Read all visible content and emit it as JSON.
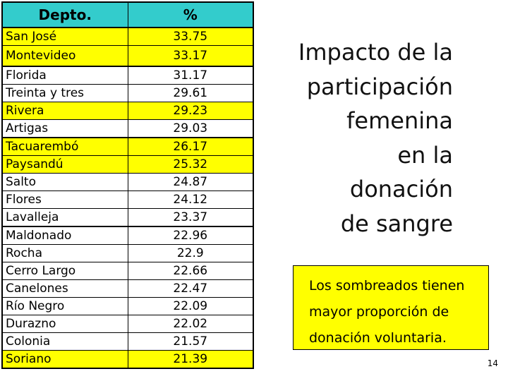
{
  "table": {
    "headers": [
      "Depto.",
      "%"
    ],
    "rows": [
      {
        "depto": "San José",
        "pct": "33.75",
        "highlight": true
      },
      {
        "depto": "Montevideo",
        "pct": "33.17",
        "highlight": true
      },
      {
        "depto": "Florida",
        "pct": "31.17",
        "highlight": false
      },
      {
        "depto": "Treinta y tres",
        "pct": "29.61",
        "highlight": false
      },
      {
        "depto": "Rivera",
        "pct": "29.23",
        "highlight": true
      },
      {
        "depto": "Artigas",
        "pct": "29.03",
        "highlight": false
      },
      {
        "depto": "Tacuarembó",
        "pct": "26.17",
        "highlight": true
      },
      {
        "depto": "Paysandú",
        "pct": "25.32",
        "highlight": true
      },
      {
        "depto": "Salto",
        "pct": "24.87",
        "highlight": false
      },
      {
        "depto": "Flores",
        "pct": "24.12",
        "highlight": false
      },
      {
        "depto": "Lavalleja",
        "pct": "23.37",
        "highlight": false
      },
      {
        "depto": "Maldonado",
        "pct": "22.96",
        "highlight": false
      },
      {
        "depto": "Rocha",
        "pct": "22.9",
        "highlight": false
      },
      {
        "depto": "Cerro Largo",
        "pct": "22.66",
        "highlight": false
      },
      {
        "depto": "Canelones",
        "pct": "22.47",
        "highlight": false
      },
      {
        "depto": "Río Negro",
        "pct": "22.09",
        "highlight": false
      },
      {
        "depto": "Durazno",
        "pct": "22.02",
        "highlight": false
      },
      {
        "depto": "Colonia",
        "pct": "21.57",
        "highlight": false
      },
      {
        "depto": "Soriano",
        "pct": "21.39",
        "highlight": true
      }
    ]
  },
  "title_lines": [
    "Impacto de la",
    "participación",
    "femenina",
    "en la",
    "donación",
    "de sangre"
  ],
  "note_lines": [
    "Los sombreados tienen",
    "mayor proporción de",
    "donación voluntaria."
  ],
  "page_number": "14",
  "colors": {
    "header_bg": "#33cccc",
    "highlight": "#ffff00"
  }
}
